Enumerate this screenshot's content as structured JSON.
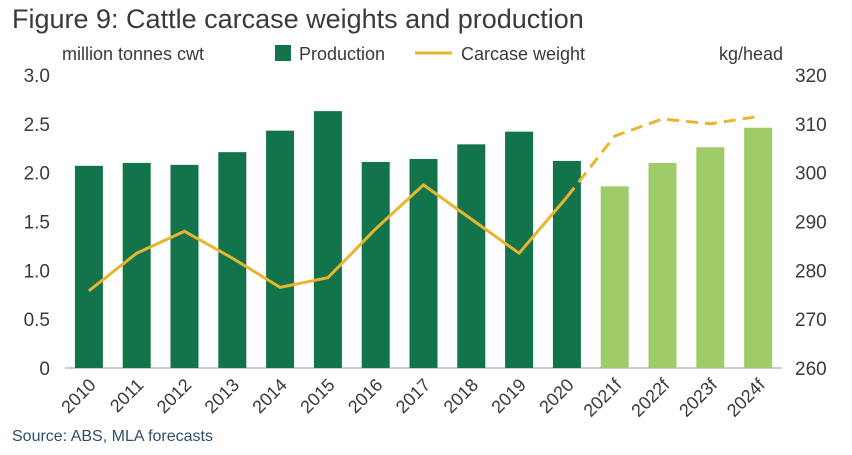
{
  "chart_data": {
    "type": "bar+line",
    "title": "Figure 9: Cattle carcase weights and production",
    "source": "Source: ABS, MLA forecasts",
    "y_left_label": "million tonnes cwt",
    "y_right_label": "kg/head",
    "y_left_lim": [
      0,
      3.0
    ],
    "y_left_ticks": [
      "0",
      "0.5",
      "1.0",
      "1.5",
      "2.0",
      "2.5",
      "3.0"
    ],
    "y_right_lim": [
      260,
      320
    ],
    "y_right_ticks": [
      "260",
      "270",
      "280",
      "290",
      "300",
      "310",
      "320"
    ],
    "categories": [
      "2010",
      "2011",
      "2012",
      "2013",
      "2014",
      "2015",
      "2016",
      "2017",
      "2018",
      "2019",
      "2020",
      "2021f",
      "2022f",
      "2023f",
      "2024f"
    ],
    "forecast_from_index": 11,
    "legend": [
      {
        "name": "Production",
        "kind": "bar",
        "color": "#13734a"
      },
      {
        "name": "Carcase weight",
        "kind": "line",
        "color": "#e8b52e"
      }
    ],
    "series": [
      {
        "name": "Production",
        "axis": "left",
        "values": [
          2.07,
          2.1,
          2.08,
          2.21,
          2.43,
          2.63,
          2.11,
          2.14,
          2.29,
          2.42,
          2.12,
          1.86,
          2.1,
          2.26,
          2.46
        ]
      },
      {
        "name": "Carcase weight",
        "axis": "right",
        "values": [
          275.8,
          283.5,
          288.0,
          282.5,
          276.5,
          278.5,
          288.5,
          297.5,
          290.5,
          283.5,
          295.0,
          307.5,
          311.0,
          310.0,
          311.5
        ]
      }
    ],
    "colors": {
      "actual_bar": "#13734a",
      "forecast_bar": "#9fcc69",
      "line": "#e8b52e",
      "axis_text": "#3a3a3a"
    }
  }
}
